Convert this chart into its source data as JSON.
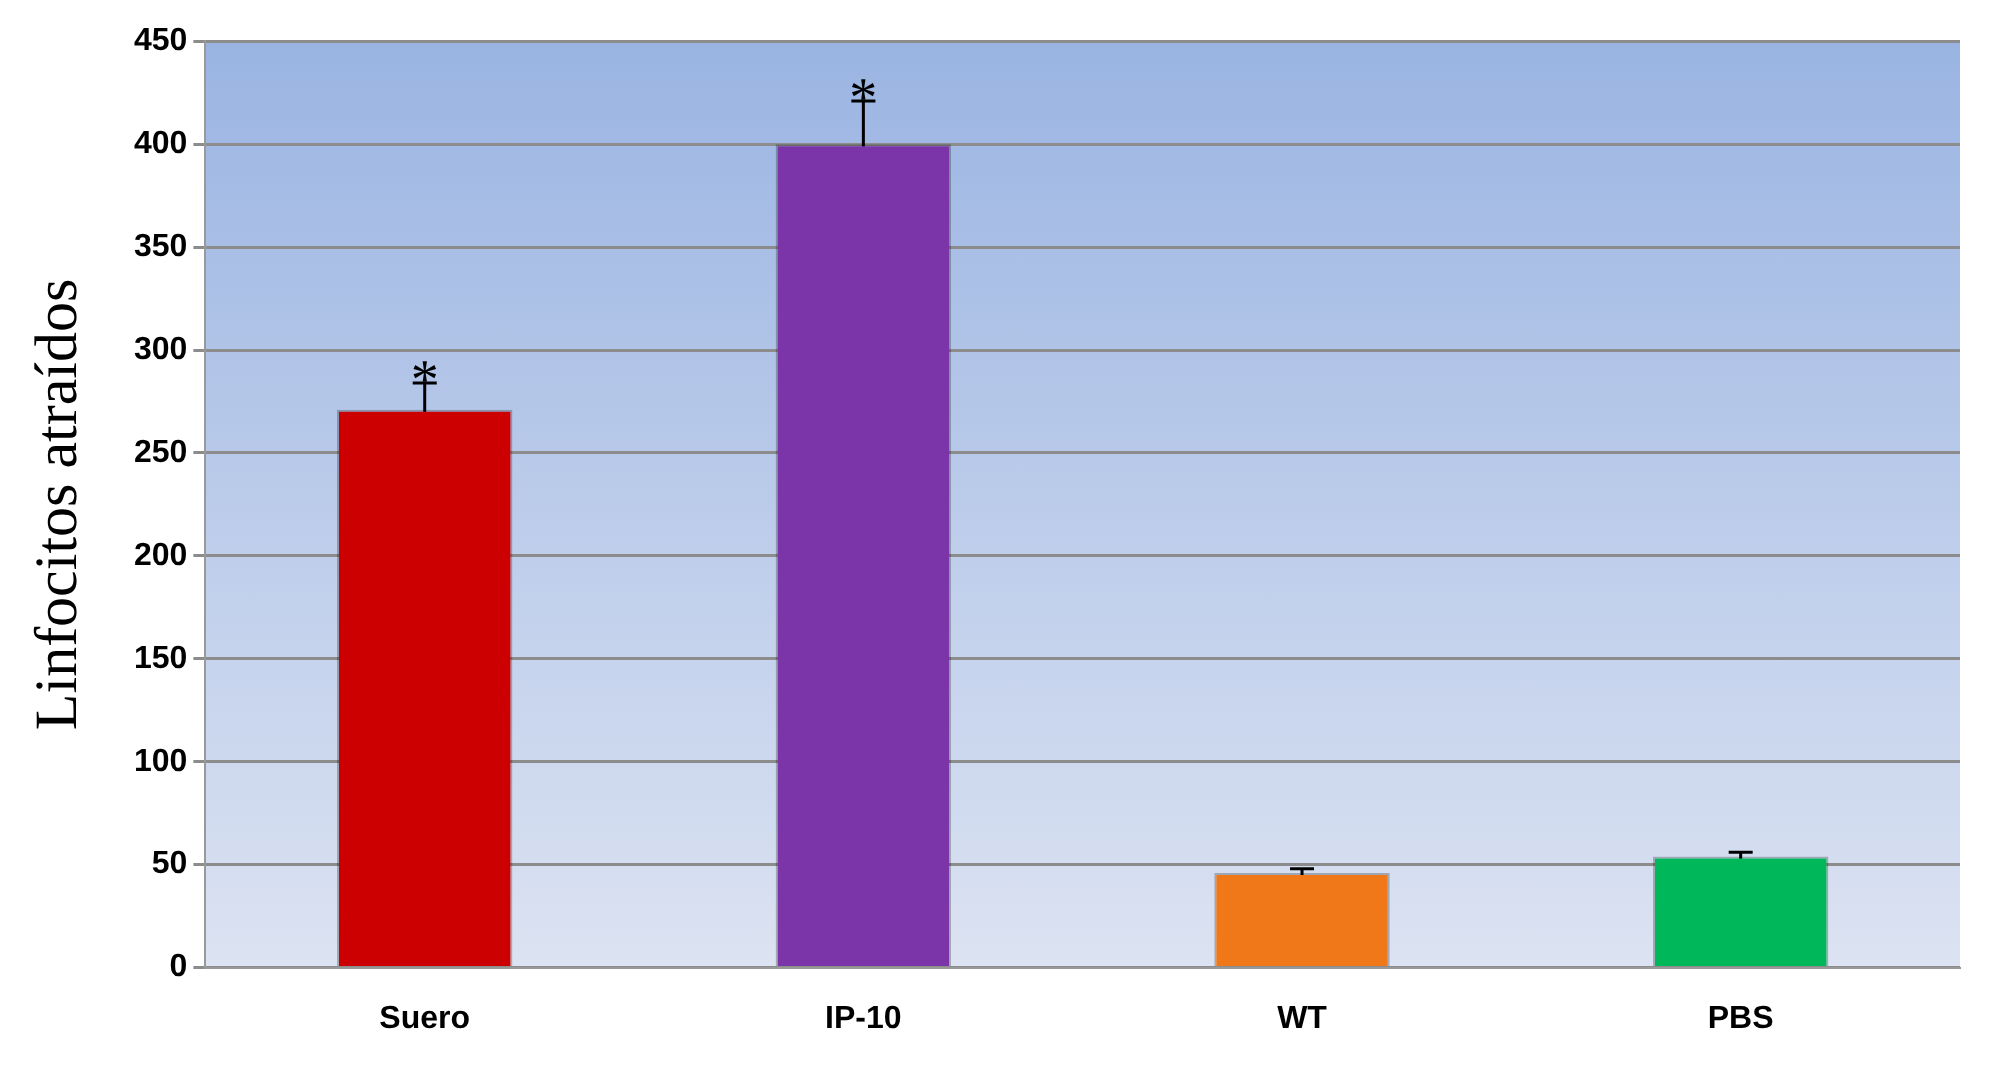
{
  "chart_data": {
    "type": "bar",
    "ylabel": "Linfocitos atraídos",
    "categories": [
      "Suero",
      "IP-10",
      "WT",
      "PBS"
    ],
    "values": [
      271,
      400,
      46,
      54
    ],
    "colors": [
      "#cc0000",
      "#7b35a8",
      "#f07818",
      "#00b85a"
    ],
    "errors": [
      13,
      21,
      2,
      2
    ],
    "annotations": [
      {
        "text": "*",
        "x": "Suero",
        "y": 284
      },
      {
        "text": "*",
        "x": "IP-10",
        "y": 421
      }
    ],
    "ylim": [
      0,
      450
    ],
    "yticks": [
      0,
      50,
      100,
      150,
      200,
      250,
      300,
      350,
      400,
      450
    ],
    "grid": "y",
    "legend": false
  }
}
